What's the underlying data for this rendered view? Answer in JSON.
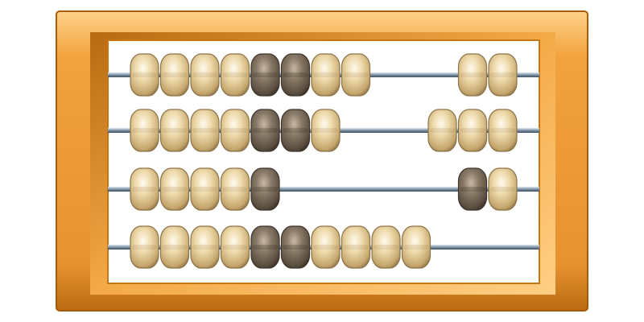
{
  "abacus": {
    "rods": [
      {
        "left_beads": 8,
        "right_beads": 2,
        "left_dark": [
          4,
          5
        ],
        "right_dark": []
      },
      {
        "left_beads": 7,
        "right_beads": 3,
        "left_dark": [
          4,
          5
        ],
        "right_dark": []
      },
      {
        "left_beads": 5,
        "right_beads": 2,
        "left_dark": [
          4
        ],
        "right_dark": [
          0
        ]
      },
      {
        "left_beads": 10,
        "right_beads": 0,
        "left_dark": [
          4,
          5
        ],
        "right_dark": []
      }
    ],
    "colors": {
      "frame_outer": "#f0a23c",
      "frame_dark": "#c77614",
      "frame_light": "#ffd28a",
      "board": "#ffffff",
      "rod": "#8fa4b5",
      "bead_light": "#e6d3a4",
      "bead_light_edge": "#8d7449",
      "bead_dark": "#77695a",
      "bead_dark_edge": "#3f352b"
    }
  }
}
